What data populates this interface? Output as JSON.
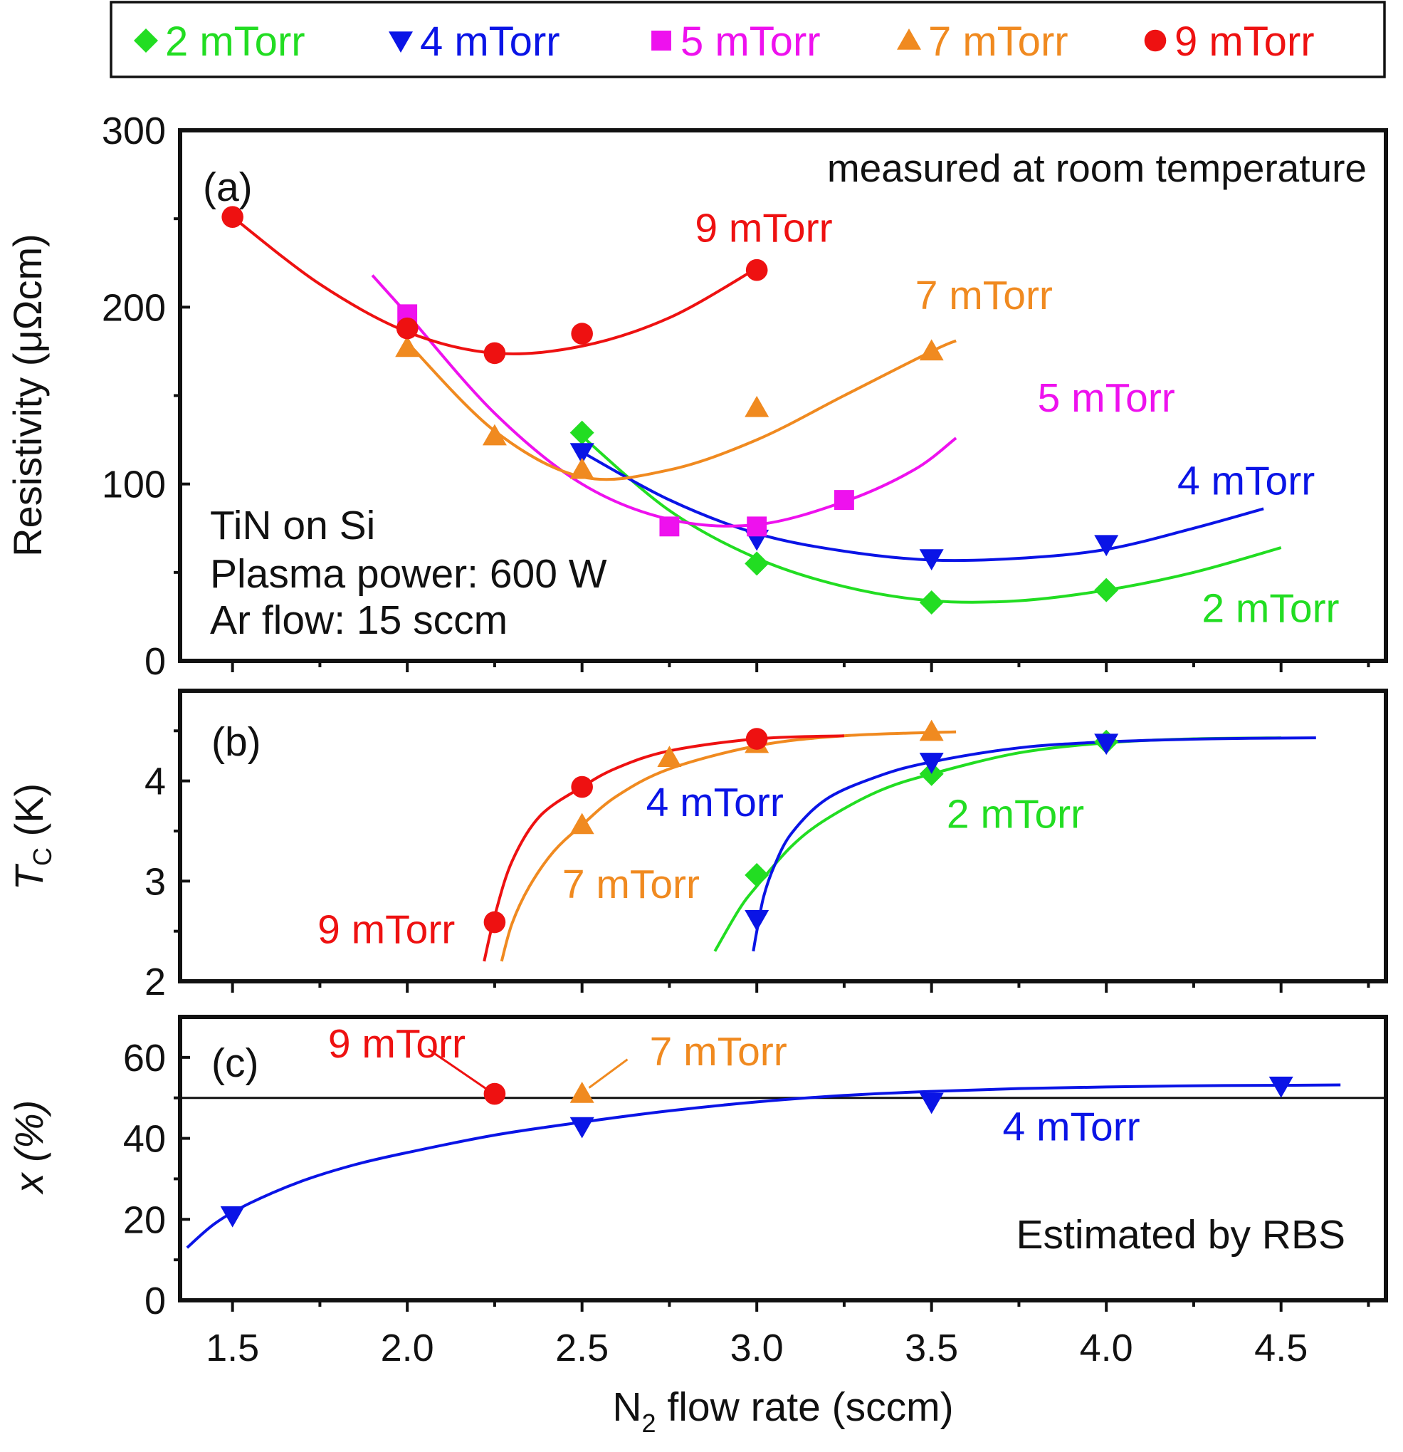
{
  "legend": {
    "items": [
      {
        "label": "2 mTorr",
        "color": "#22dd22",
        "marker": "diamond"
      },
      {
        "label": "4 mTorr",
        "color": "#0a14e6",
        "marker": "triangle-down"
      },
      {
        "label": "5 mTorr",
        "color": "#ee11ee",
        "marker": "square"
      },
      {
        "label": "7 mTorr",
        "color": "#f08a20",
        "marker": "triangle-up"
      },
      {
        "label": "9 mTorr",
        "color": "#ee1111",
        "marker": "circle"
      }
    ]
  },
  "xlabel": {
    "base": "N",
    "sub": "2",
    "rest": " flow rate (sccm)"
  },
  "chart_data": [
    {
      "id": "a",
      "type": "scatter",
      "panel_label": "(a)",
      "ylabel": "Resistivity (μΩcm)",
      "xlim": [
        1.35,
        4.8
      ],
      "ylim": [
        0,
        300
      ],
      "yticks": [
        "0",
        "100",
        "200",
        "300"
      ],
      "yminor": [
        50,
        150,
        250
      ],
      "xticks": [],
      "annotations": [
        "measured at room temperature",
        "TiN on Si",
        "Plasma power: 600 W",
        "Ar flow: 15 sccm"
      ],
      "series": [
        {
          "name": "2 mTorr",
          "color": "#22dd22",
          "marker": "diamond",
          "x": [
            2.5,
            3.0,
            3.5,
            4.0
          ],
          "y": [
            129,
            55,
            33,
            40
          ],
          "fit": {
            "x": [
              2.5,
              2.75,
              3.0,
              3.25,
              3.5,
              3.75,
              4.0,
              4.25,
              4.5
            ],
            "y": [
              127,
              85,
              58,
              42,
              34,
              34,
              40,
              50,
              64
            ]
          }
        },
        {
          "name": "4 mTorr",
          "color": "#0a14e6",
          "marker": "triangle-down",
          "x": [
            2.5,
            3.0,
            3.5,
            4.0
          ],
          "y": [
            118,
            69,
            58,
            66
          ],
          "fit": {
            "x": [
              2.5,
              2.75,
              3.0,
              3.25,
              3.5,
              3.75,
              4.0,
              4.25,
              4.45
            ],
            "y": [
              118,
              91,
              72,
              62,
              57,
              58,
              63,
              75,
              86
            ]
          }
        },
        {
          "name": "5 mTorr",
          "color": "#ee11ee",
          "marker": "square",
          "x": [
            2.0,
            2.75,
            3.0,
            3.25
          ],
          "y": [
            196,
            76,
            76,
            91
          ],
          "fit": {
            "x": [
              1.9,
              2.0,
              2.25,
              2.5,
              2.75,
              3.0,
              3.25,
              3.45,
              3.57
            ],
            "y": [
              218,
              196,
              140,
              100,
              80,
              77,
              90,
              108,
              126
            ]
          }
        },
        {
          "name": "7 mTorr",
          "color": "#f08a20",
          "marker": "triangle-up",
          "x": [
            2.0,
            2.25,
            2.5,
            3.0,
            3.5
          ],
          "y": [
            177,
            127,
            108,
            143,
            175
          ],
          "fit": {
            "x": [
              2.0,
              2.25,
              2.5,
              2.75,
              3.0,
              3.25,
              3.5,
              3.57
            ],
            "y": [
              180,
              130,
              104,
              108,
              125,
              150,
              175,
              181
            ]
          }
        },
        {
          "name": "9 mTorr",
          "color": "#ee1111",
          "marker": "circle",
          "x": [
            1.5,
            2.0,
            2.25,
            2.5,
            3.0
          ],
          "y": [
            251,
            188,
            174,
            185,
            221
          ],
          "fit": {
            "x": [
              1.5,
              1.75,
              2.0,
              2.25,
              2.5,
              2.75,
              3.0
            ],
            "y": [
              251,
              213,
              186,
              174,
              178,
              194,
              222
            ]
          }
        }
      ],
      "labels": [
        {
          "text": "9 mTorr",
          "color": "#ee1111",
          "x": 3.02,
          "y": 237,
          "anchor": "middle"
        },
        {
          "text": "7 mTorr",
          "color": "#f08a20",
          "x": 3.65,
          "y": 199,
          "anchor": "middle"
        },
        {
          "text": "5 mTorr",
          "color": "#ee11ee",
          "x": 4.0,
          "y": 141,
          "anchor": "middle"
        },
        {
          "text": "4 mTorr",
          "color": "#0a14e6",
          "x": 4.4,
          "y": 94,
          "anchor": "middle"
        },
        {
          "text": "2 mTorr",
          "color": "#22dd22",
          "x": 4.47,
          "y": 22,
          "anchor": "middle"
        }
      ]
    },
    {
      "id": "b",
      "type": "scatter",
      "panel_label": "(b)",
      "ylabel": "T",
      "ylabel_sub": "C",
      "ylabel_rest": " (K)",
      "xlim": [
        1.35,
        4.8
      ],
      "ylim": [
        2,
        4.9
      ],
      "yticks": [
        "2",
        "3",
        "4"
      ],
      "ytick_values": [
        2,
        3,
        4
      ],
      "yminor": [
        2.5,
        3.5,
        4.5
      ],
      "series": [
        {
          "name": "2 mTorr",
          "color": "#22dd22",
          "marker": "diamond",
          "x": [
            3.0,
            3.5,
            4.0
          ],
          "y": [
            3.06,
            4.07,
            4.39
          ],
          "fit": {
            "x": [
              2.88,
              2.95,
              3.0,
              3.1,
              3.2,
              3.35,
              3.5,
              3.75,
              4.0,
              4.25,
              4.5
            ],
            "y": [
              2.3,
              2.72,
              2.95,
              3.35,
              3.62,
              3.9,
              4.07,
              4.28,
              4.38,
              4.42,
              4.43
            ]
          }
        },
        {
          "name": "4 mTorr",
          "color": "#0a14e6",
          "marker": "triangle-down",
          "x": [
            3.0,
            3.5,
            4.0
          ],
          "y": [
            2.62,
            4.19,
            4.38
          ],
          "fit": {
            "x": [
              2.99,
              3.0,
              3.02,
              3.05,
              3.1,
              3.2,
              3.35,
              3.5,
              3.75,
              4.0,
              4.3,
              4.6
            ],
            "y": [
              2.3,
              2.5,
              2.85,
              3.15,
              3.48,
              3.82,
              4.05,
              4.19,
              4.33,
              4.39,
              4.42,
              4.43
            ]
          }
        },
        {
          "name": "7 mTorr",
          "color": "#f08a20",
          "marker": "triangle-up",
          "x": [
            2.5,
            2.75,
            3.0,
            3.5
          ],
          "y": [
            3.56,
            4.23,
            4.37,
            4.49
          ],
          "fit": {
            "x": [
              2.27,
              2.3,
              2.35,
              2.42,
              2.5,
              2.6,
              2.75,
              3.0,
              3.25,
              3.57
            ],
            "y": [
              2.2,
              2.58,
              2.95,
              3.3,
              3.56,
              3.85,
              4.12,
              4.35,
              4.45,
              4.49
            ]
          }
        },
        {
          "name": "9 mTorr",
          "color": "#ee1111",
          "marker": "circle",
          "x": [
            2.25,
            2.5,
            3.0
          ],
          "y": [
            2.59,
            3.94,
            4.42
          ],
          "fit": {
            "x": [
              2.22,
              2.25,
              2.3,
              2.38,
              2.5,
              2.6,
              2.75,
              3.0,
              3.25
            ],
            "y": [
              2.2,
              2.65,
              3.2,
              3.65,
              3.94,
              4.13,
              4.3,
              4.42,
              4.45
            ]
          }
        }
      ],
      "labels": [
        {
          "text": "4 mTorr",
          "color": "#0a14e6",
          "x": 2.88,
          "y": 3.65,
          "anchor": "middle"
        },
        {
          "text": "2 mTorr",
          "color": "#22dd22",
          "x": 3.74,
          "y": 3.53,
          "anchor": "middle"
        },
        {
          "text": "7 mTorr",
          "color": "#f08a20",
          "x": 2.64,
          "y": 2.83,
          "anchor": "middle"
        },
        {
          "text": "9 mTorr",
          "color": "#ee1111",
          "x": 1.94,
          "y": 2.38,
          "anchor": "middle"
        }
      ]
    },
    {
      "id": "c",
      "type": "scatter",
      "panel_label": "(c)",
      "ylabel": "x (%)",
      "xlim": [
        1.35,
        4.8
      ],
      "ylim": [
        0,
        70
      ],
      "yticks": [
        "0",
        "20",
        "40",
        "60"
      ],
      "ytick_values": [
        0,
        20,
        40,
        60
      ],
      "yminor": [
        10,
        30,
        50
      ],
      "xticks": [
        "1.5",
        "2.0",
        "2.5",
        "3.0",
        "3.5",
        "4.0",
        "4.5"
      ],
      "xtick_values": [
        1.5,
        2.0,
        2.5,
        3.0,
        3.5,
        4.0,
        4.5
      ],
      "reference_line": 50,
      "annotations": [
        "Estimated by RBS"
      ],
      "series": [
        {
          "name": "9 mTorr",
          "color": "#ee1111",
          "marker": "circle",
          "x": [
            2.25
          ],
          "y": [
            51
          ]
        },
        {
          "name": "7 mTorr",
          "color": "#f08a20",
          "marker": "triangle-up",
          "x": [
            2.5
          ],
          "y": [
            51
          ]
        },
        {
          "name": "4 mTorr",
          "color": "#0a14e6",
          "marker": "triangle-down",
          "x": [
            1.5,
            2.5,
            3.5,
            4.5
          ],
          "y": [
            21,
            43,
            49,
            53
          ],
          "fit": {
            "x": [
              1.37,
              1.45,
              1.55,
              1.7,
              1.85,
              2.0,
              2.25,
              2.5,
              2.75,
              3.0,
              3.25,
              3.5,
              3.75,
              4.0,
              4.25,
              4.5,
              4.67
            ],
            "y": [
              13,
              19,
              24,
              29.5,
              33.5,
              36.5,
              40.8,
              44,
              46.8,
              49,
              50.6,
              51.6,
              52.3,
              52.7,
              53,
              53.1,
              53.2
            ]
          }
        }
      ],
      "labels": [
        {
          "text": "9 mTorr",
          "color": "#ee1111",
          "x": 1.97,
          "y": 60,
          "anchor": "middle"
        },
        {
          "text": "7 mTorr",
          "color": "#f08a20",
          "x": 2.89,
          "y": 58,
          "anchor": "middle"
        },
        {
          "text": "4 mTorr",
          "color": "#0a14e6",
          "x": 3.9,
          "y": 39.5,
          "anchor": "middle"
        }
      ]
    }
  ]
}
